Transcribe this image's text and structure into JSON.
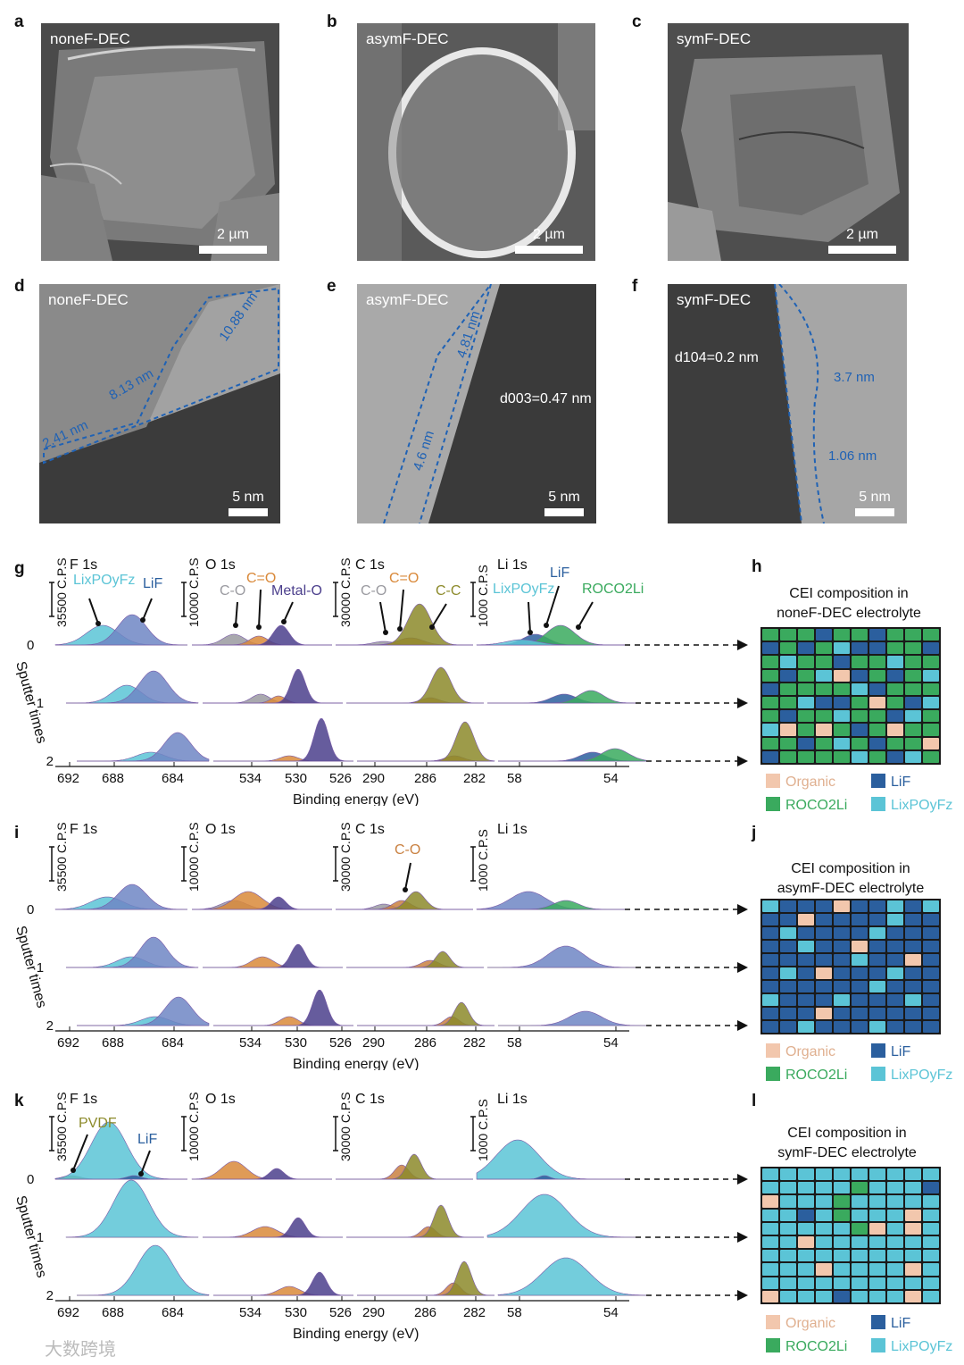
{
  "panels": {
    "sem": [
      {
        "letter": "a",
        "caption": "noneF-DEC",
        "scale": "2 µm"
      },
      {
        "letter": "b",
        "caption": "asymF-DEC",
        "scale": "2 µm"
      },
      {
        "letter": "c",
        "caption": "symF-DEC",
        "scale": "2 µm"
      }
    ],
    "tem": [
      {
        "letter": "d",
        "caption": "noneF-DEC",
        "scale": "5 nm",
        "annotations": [
          "10.88 nm",
          "8.13 nm",
          "2.41 nm"
        ]
      },
      {
        "letter": "e",
        "caption": "asymF-DEC",
        "scale": "5 nm",
        "annotations": [
          "4.81 nm",
          "4.6 nm",
          "d003=0.47 nm"
        ]
      },
      {
        "letter": "f",
        "caption": "symF-DEC",
        "scale": "5 nm",
        "annotations": [
          "d104=0.2 nm",
          "3.7 nm",
          "1.06 nm"
        ]
      }
    ]
  },
  "xps": [
    {
      "letter": "g",
      "peaks": {
        "f": [
          "LixPOyFz",
          "LiF"
        ],
        "o": [
          "C-O",
          "C=O",
          "Metal-O"
        ],
        "c": [
          "C-O",
          "C=O",
          "C-C"
        ],
        "li": [
          "LixPOyFz",
          "LiF",
          "ROCO2Li"
        ]
      }
    },
    {
      "letter": "i",
      "peaks": {
        "c": [
          "C-O"
        ]
      }
    },
    {
      "letter": "k",
      "peaks": {
        "f": [
          "PVDF",
          "LiF"
        ]
      }
    }
  ],
  "xps_common": {
    "regions": [
      "F 1s",
      "O 1s",
      "C 1s",
      "Li 1s"
    ],
    "scales": [
      "35500 C.P.S",
      "10000 C.P.S",
      "30000 C.P.S",
      "1000 C.P.S"
    ],
    "xticks": [
      "692",
      "688",
      "684",
      "534",
      "530",
      "526",
      "290",
      "286",
      "282",
      "58",
      "54"
    ],
    "xlabel": "Binding energy (eV)",
    "ylabel": "Sputter times",
    "yticks": [
      "0",
      "1",
      "2"
    ]
  },
  "cei": [
    {
      "letter": "h",
      "title1": "CEI composition in",
      "title2": "noneF-DEC electrolyte"
    },
    {
      "letter": "j",
      "title1": "CEI composition in",
      "title2": "asymF-DEC electrolyte"
    },
    {
      "letter": "l",
      "title1": "CEI composition in",
      "title2": "symF-DEC electrolyte"
    }
  ],
  "legend": {
    "organic": "Organic",
    "lif": "LiF",
    "roco2li": "ROCO2Li",
    "lixpoyfz": "LixPOyFz"
  },
  "colors": {
    "organic": "#f2c7ad",
    "lif": "#2b5f9e",
    "roco2li": "#3aaa5e",
    "lixpoyfz": "#5bc4d6",
    "blue_ann": "#1f62b5",
    "f1s": "#6f86c4",
    "o_organic": "#d9893a",
    "o_metal": "#4b3f8c",
    "c_cc": "#8c8a2a",
    "c_co": "#c98040",
    "grey": "#9a9aa0"
  },
  "watermark": "大数跨境"
}
